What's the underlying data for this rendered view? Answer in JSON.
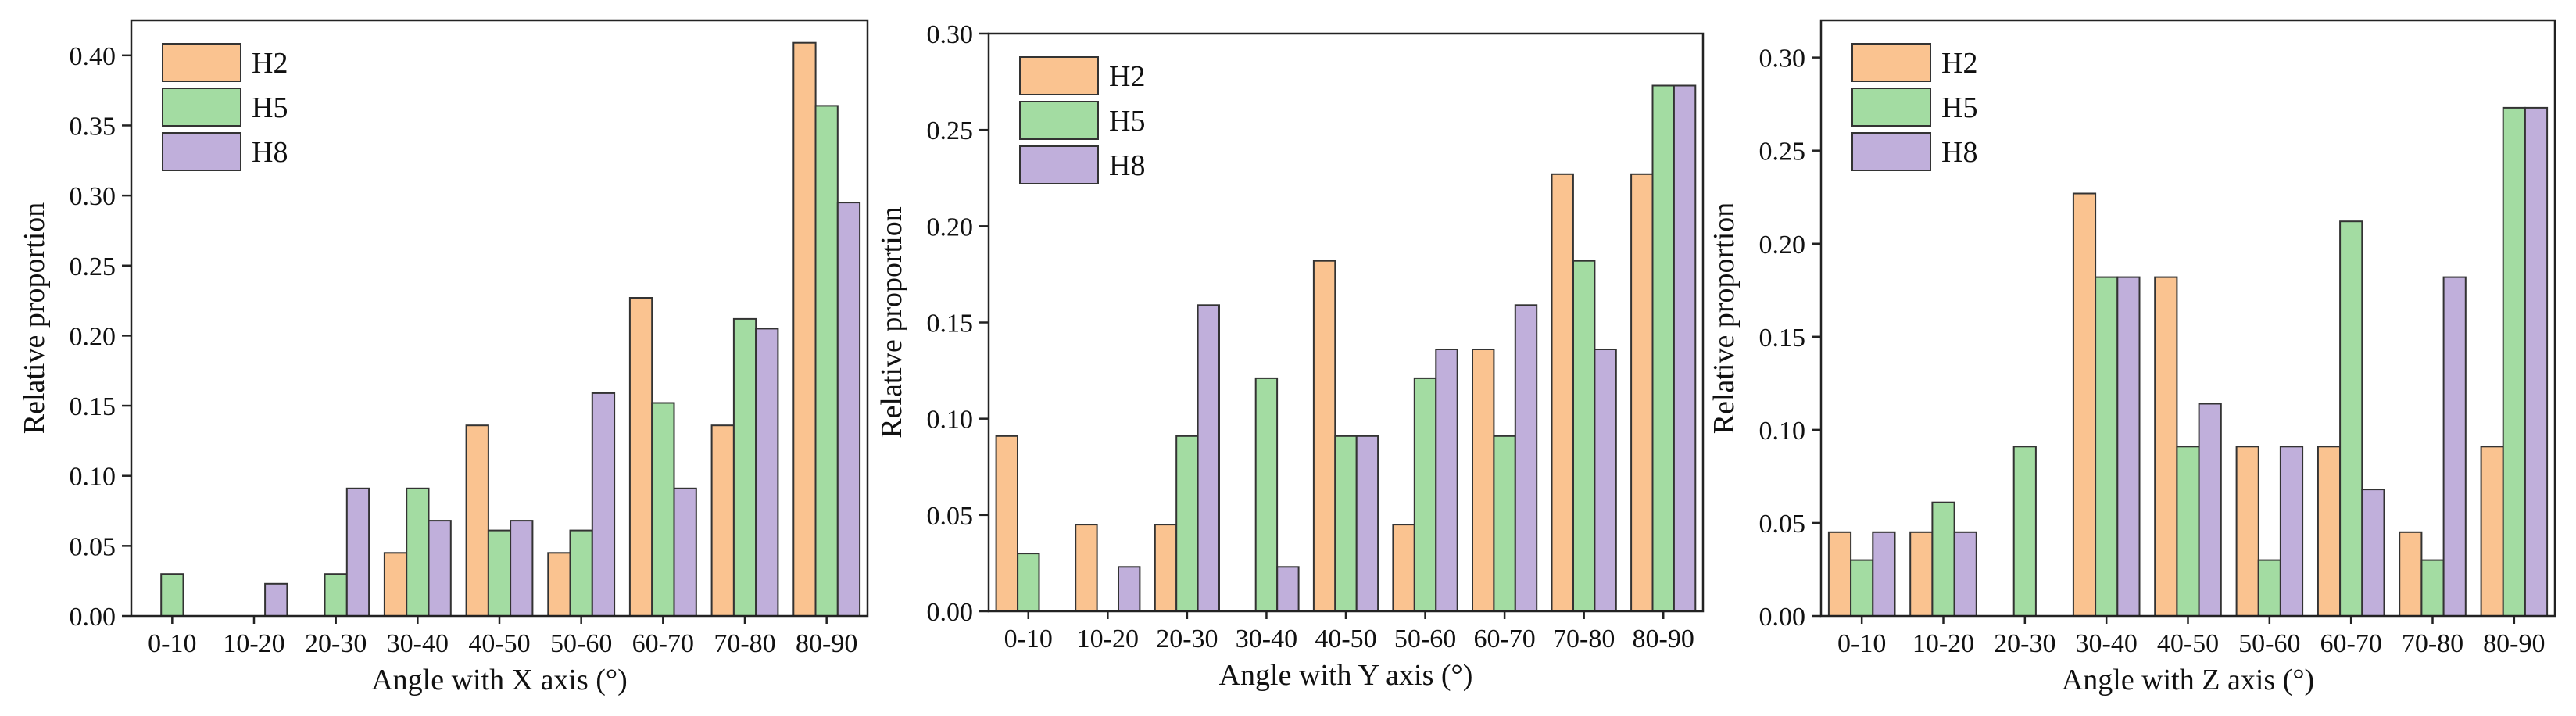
{
  "colors": {
    "H2": "#FAC390",
    "H5": "#A3DCA2",
    "H8": "#C0AFDB"
  },
  "chart_data": [
    {
      "type": "bar",
      "title": "",
      "xlabel": "Angle with X axis (°)",
      "ylabel": "Relative proportion",
      "categories": [
        "0-10",
        "10-20",
        "20-30",
        "30-40",
        "40-50",
        "50-60",
        "60-70",
        "70-80",
        "80-90"
      ],
      "ylim": [
        0,
        0.425
      ],
      "yticks": [
        0.0,
        0.05,
        0.1,
        0.15,
        0.2,
        0.25,
        0.3,
        0.35,
        0.4
      ],
      "ytick_labels": [
        "0.00",
        "0.05",
        "0.10",
        "0.15",
        "0.20",
        "0.25",
        "0.30",
        "0.35",
        "0.40"
      ],
      "legend": "top-left",
      "series": [
        {
          "name": "H2",
          "values": [
            0,
            0,
            0,
            0.045,
            0.136,
            0.045,
            0.227,
            0.136,
            0.409
          ]
        },
        {
          "name": "H5",
          "values": [
            0.03,
            0,
            0.03,
            0.091,
            0.061,
            0.061,
            0.152,
            0.212,
            0.364
          ]
        },
        {
          "name": "H8",
          "values": [
            0,
            0.023,
            0.091,
            0.068,
            0.068,
            0.159,
            0.091,
            0.205,
            0.295
          ]
        }
      ]
    },
    {
      "type": "bar",
      "title": "",
      "xlabel": "Angle with Y axis (°)",
      "ylabel": "Relative proportion",
      "categories": [
        "0-10",
        "10-20",
        "20-30",
        "30-40",
        "40-50",
        "50-60",
        "60-70",
        "70-80",
        "80-90"
      ],
      "ylim": [
        0,
        0.3
      ],
      "yticks": [
        0.0,
        0.05,
        0.1,
        0.15,
        0.2,
        0.25,
        0.3
      ],
      "ytick_labels": [
        "0.00",
        "0.05",
        "0.10",
        "0.15",
        "0.20",
        "0.25",
        "0.30"
      ],
      "legend": "top-left",
      "series": [
        {
          "name": "H2",
          "values": [
            0.091,
            0.045,
            0.045,
            0,
            0.182,
            0.045,
            0.136,
            0.227,
            0.227
          ]
        },
        {
          "name": "H5",
          "values": [
            0.03,
            0,
            0.091,
            0.121,
            0.091,
            0.121,
            0.091,
            0.182,
            0.273
          ]
        },
        {
          "name": "H8",
          "values": [
            0,
            0.023,
            0.159,
            0.023,
            0.091,
            0.136,
            0.159,
            0.136,
            0.273
          ]
        }
      ]
    },
    {
      "type": "bar",
      "title": "",
      "xlabel": "Angle with Z axis (°)",
      "ylabel": "Relative proportion",
      "categories": [
        "0-10",
        "10-20",
        "20-30",
        "30-40",
        "40-50",
        "50-60",
        "60-70",
        "70-80",
        "80-90"
      ],
      "ylim": [
        0,
        0.32
      ],
      "yticks": [
        0.0,
        0.05,
        0.1,
        0.15,
        0.2,
        0.25,
        0.3
      ],
      "ytick_labels": [
        "0.00",
        "0.05",
        "0.10",
        "0.15",
        "0.20",
        "0.25",
        "0.30"
      ],
      "legend": "top-left",
      "series": [
        {
          "name": "H2",
          "values": [
            0.045,
            0.045,
            0,
            0.227,
            0.182,
            0.091,
            0.091,
            0.045,
            0.091
          ]
        },
        {
          "name": "H5",
          "values": [
            0.03,
            0.061,
            0.091,
            0.182,
            0.091,
            0.03,
            0.212,
            0.03,
            0.273
          ]
        },
        {
          "name": "H8",
          "values": [
            0.045,
            0.045,
            0,
            0.182,
            0.114,
            0.091,
            0.068,
            0.182,
            0.273
          ]
        }
      ]
    }
  ]
}
